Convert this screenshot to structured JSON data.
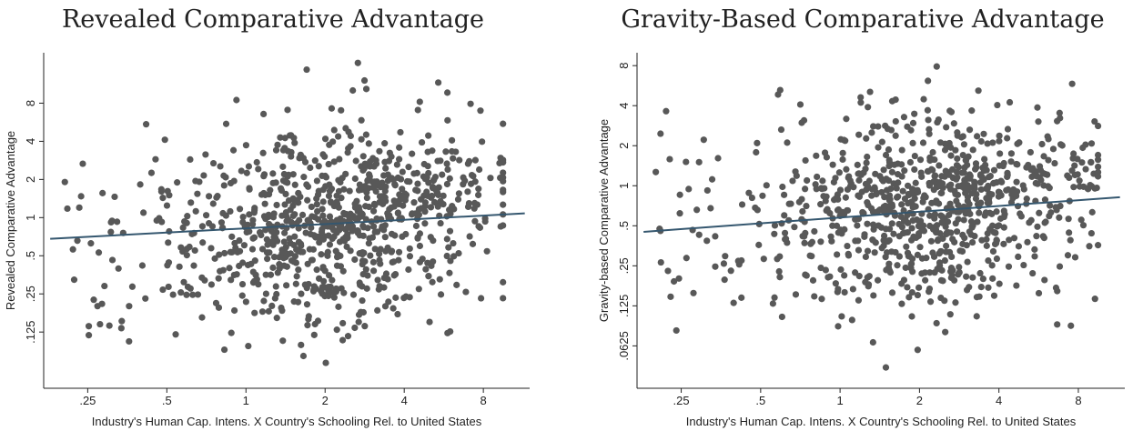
{
  "chart_data": [
    {
      "type": "scatter",
      "title": "Revealed Comparative Advantage",
      "xlabel": "Industry's Human Cap. Intens. X Country's Schooling Rel. to United States",
      "ylabel": "Revealed Comparative Advantage",
      "x_scale": "log2",
      "y_scale": "log2",
      "xlim": [
        0.17,
        12
      ],
      "ylim": [
        0.045,
        20
      ],
      "xticks": [
        0.25,
        0.5,
        1,
        2,
        4,
        8
      ],
      "xtick_labels": [
        ".25",
        ".5",
        "1",
        "2",
        "4",
        "8"
      ],
      "yticks": [
        0.125,
        0.25,
        0.5,
        1,
        2,
        4,
        8
      ],
      "ytick_labels": [
        ".125",
        ".25",
        ".5",
        "1",
        "2",
        "4",
        "8"
      ],
      "fit_line": {
        "x": [
          0.18,
          11.5
        ],
        "y": [
          0.68,
          1.08
        ]
      },
      "grid": false,
      "n_points": 900,
      "seed": 11,
      "marker_color": "#585858",
      "line_color": "#35576f"
    },
    {
      "type": "scatter",
      "title": "Gravity-Based Comparative Advantage",
      "xlabel": "Industry's Human Cap. Intens. X Country's Schooling Rel. to United States",
      "ylabel": "Gravity-based Comparative Advantage",
      "x_scale": "log2",
      "y_scale": "log2",
      "xlim": [
        0.17,
        12
      ],
      "ylim": [
        0.03,
        10
      ],
      "xticks": [
        0.25,
        0.5,
        1,
        2,
        4,
        8
      ],
      "xtick_labels": [
        ".25",
        ".5",
        "1",
        "2",
        "4",
        "8"
      ],
      "yticks": [
        0.0625,
        0.125,
        0.25,
        0.5,
        1,
        2,
        4,
        8
      ],
      "ytick_labels": [
        ".0625",
        ".125",
        ".25",
        ".5",
        "1",
        "2",
        "4",
        "8"
      ],
      "fit_line": {
        "x": [
          0.18,
          11.5
        ],
        "y": [
          0.45,
          0.82
        ]
      },
      "grid": false,
      "n_points": 900,
      "seed": 29,
      "marker_color": "#585858",
      "line_color": "#35576f"
    }
  ]
}
